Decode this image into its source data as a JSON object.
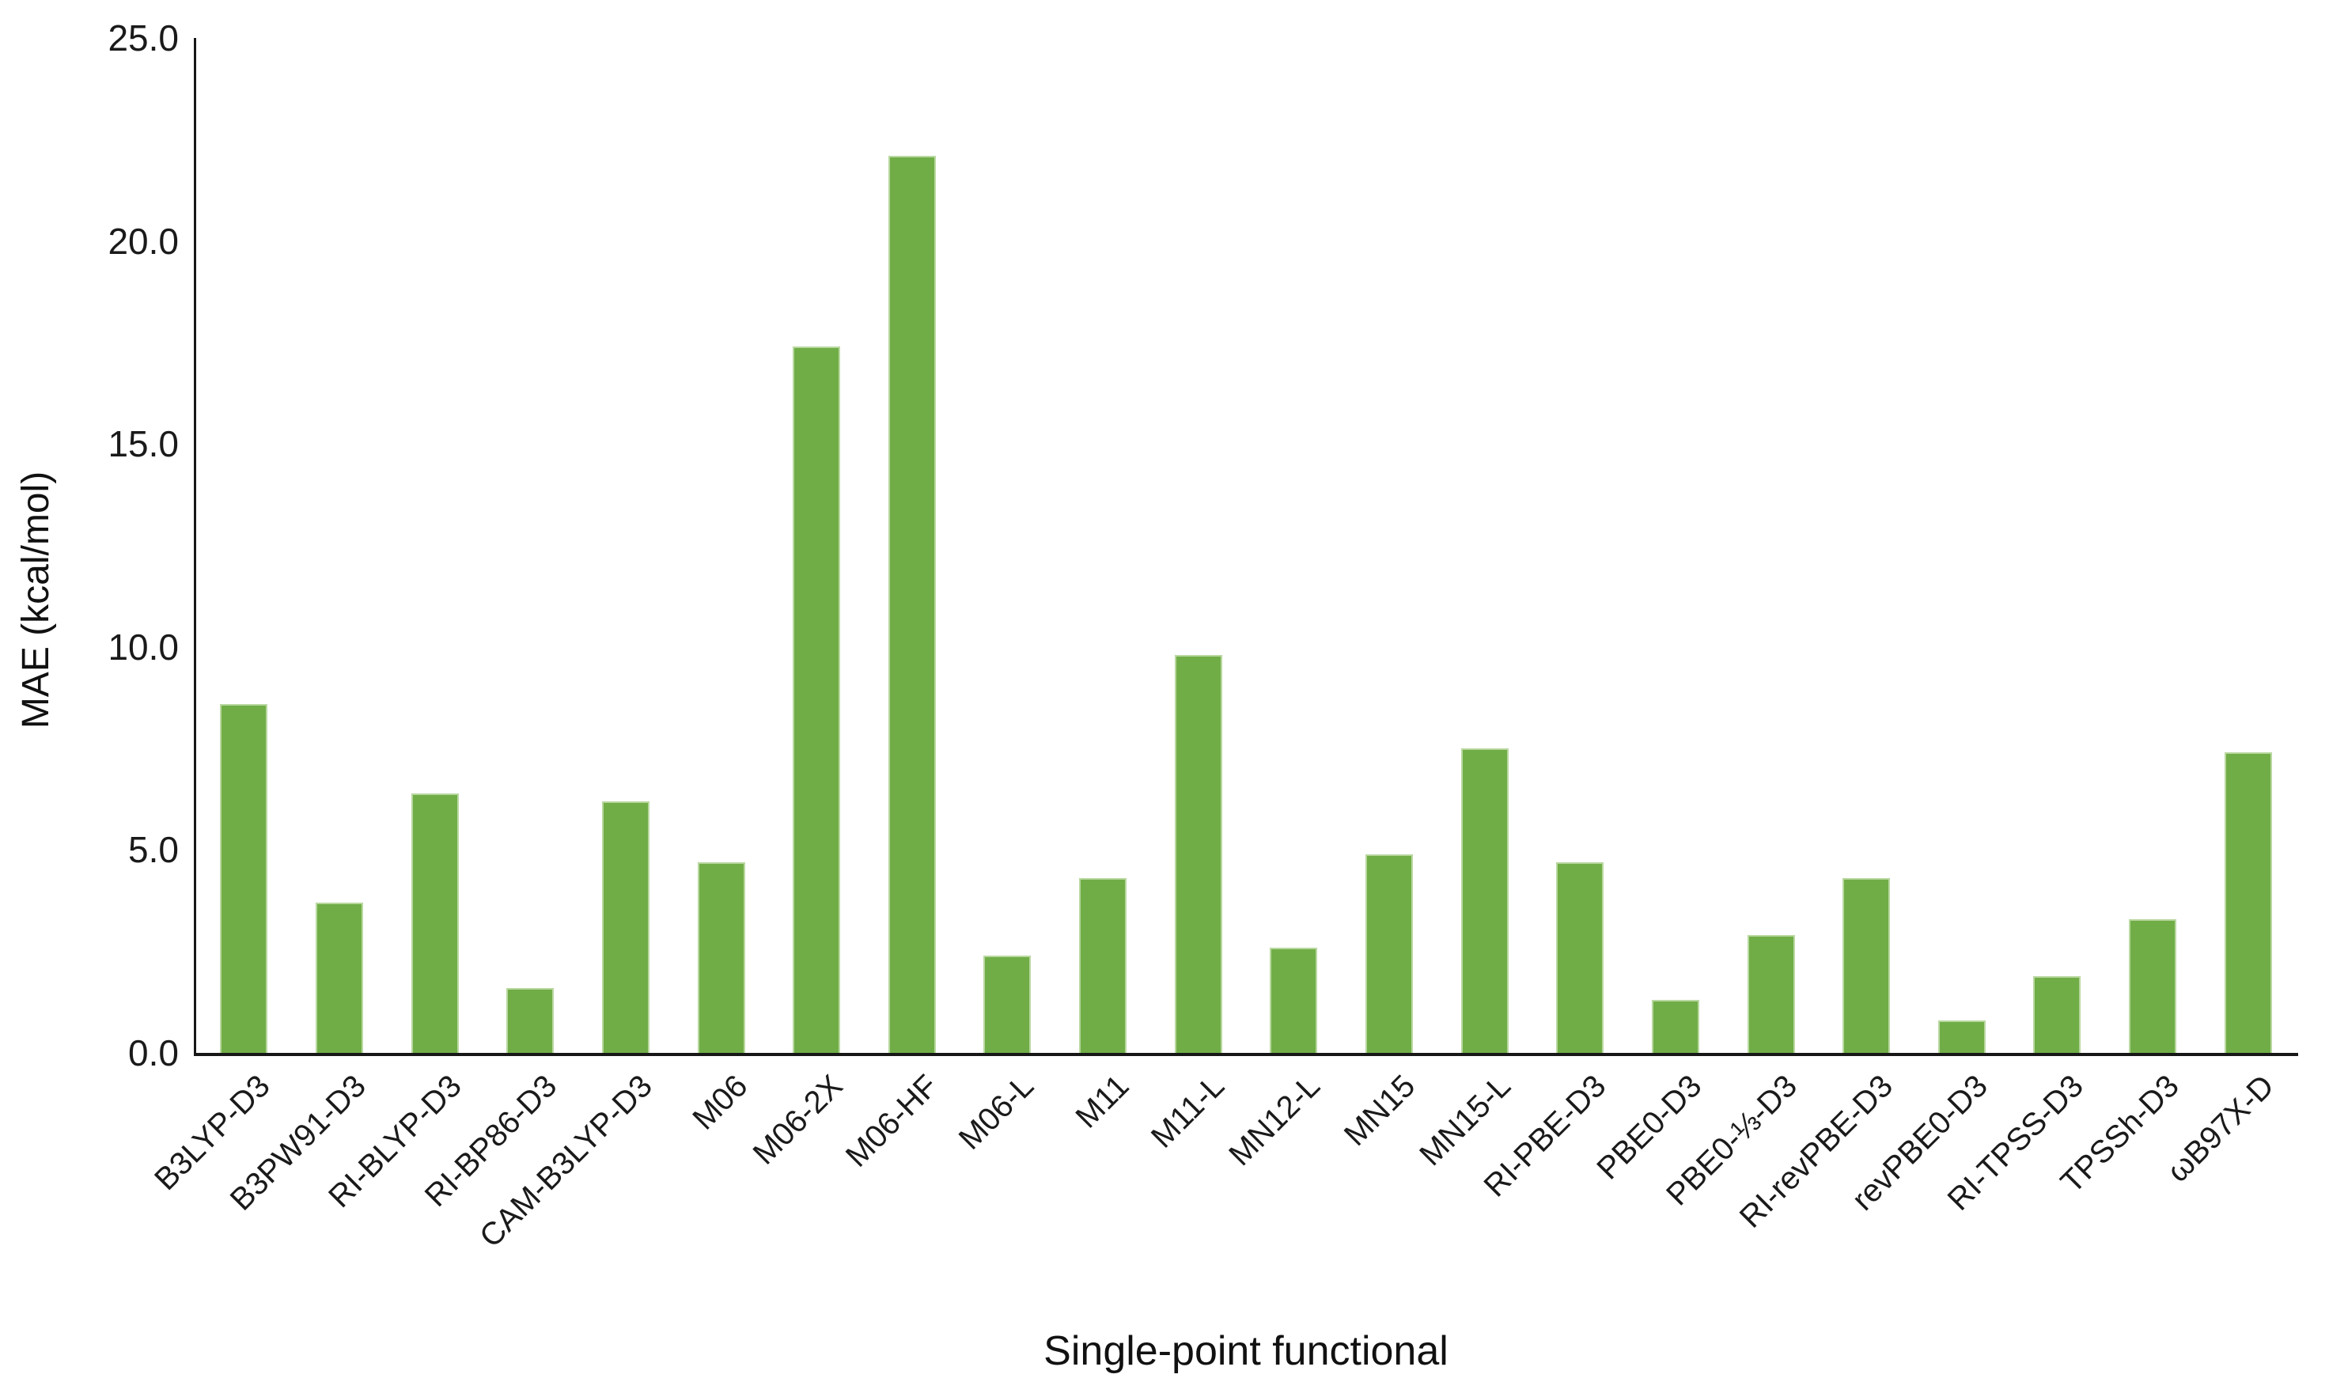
{
  "chart_data": {
    "type": "bar",
    "title": "",
    "xlabel": "Single-point functional",
    "ylabel": "MAE (kcal/mol)",
    "ylim": [
      0,
      25
    ],
    "ytick_step": 5,
    "yticks": [
      "25.0",
      "20.0",
      "15.0",
      "10.0",
      "5.0",
      "0.0"
    ],
    "grid": false,
    "legend": null,
    "bar_color": "#70AD47",
    "axis_color": "#171717",
    "categories": [
      "B3LYP-D3",
      "B3PW91-D3",
      "RI-BLYP-D3",
      "RI-BP86-D3",
      "CAM-B3LYP-D3",
      "M06",
      "M06-2X",
      "M06-HF",
      "M06-L",
      "M11",
      "M11-L",
      "MN12-L",
      "MN15",
      "MN15-L",
      "RI-PBE-D3",
      "PBE0-D3",
      "PBE0-⅓-D3",
      "RI-revPBE-D3",
      "revPBE0-D3",
      "RI-TPSS-D3",
      "TPSSh-D3",
      "ωB97X-D"
    ],
    "values": [
      8.6,
      3.7,
      6.4,
      1.6,
      6.2,
      4.7,
      17.4,
      22.1,
      2.4,
      4.3,
      9.8,
      2.6,
      4.9,
      7.5,
      4.7,
      1.3,
      2.9,
      4.3,
      0.8,
      1.9,
      3.3,
      7.4
    ]
  }
}
